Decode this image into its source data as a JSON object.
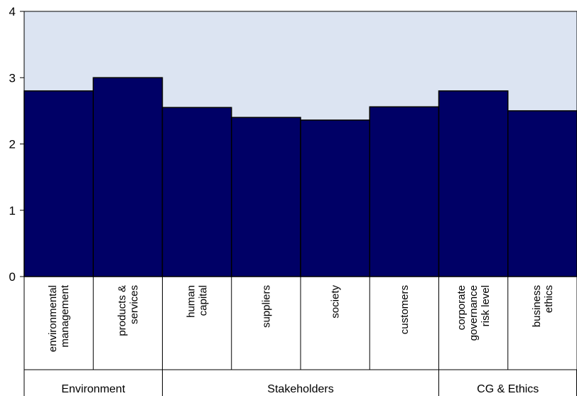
{
  "chart_data": {
    "type": "bar",
    "title": "",
    "xlabel": "",
    "ylabel": "",
    "ylim": [
      0,
      4
    ],
    "yticks": [
      0,
      1,
      2,
      3,
      4
    ],
    "grid": false,
    "categories": [
      {
        "label": [
          "environmental",
          "management"
        ],
        "value": 2.8
      },
      {
        "label": [
          "products &",
          "services"
        ],
        "value": 3.0
      },
      {
        "label": [
          "human",
          "capital"
        ],
        "value": 2.55
      },
      {
        "label": [
          "suppliers"
        ],
        "value": 2.4
      },
      {
        "label": [
          "society"
        ],
        "value": 2.36
      },
      {
        "label": [
          "customers"
        ],
        "value": 2.56
      },
      {
        "label": [
          "corporate",
          "governance",
          "risk level"
        ],
        "value": 2.8
      },
      {
        "label": [
          "business",
          "ethics"
        ],
        "value": 2.5
      }
    ],
    "groups": [
      {
        "label": "Environment",
        "span": 2
      },
      {
        "label": "Stakeholders",
        "span": 4
      },
      {
        "label": "CG & Ethics",
        "span": 2
      }
    ],
    "colors": {
      "bar": "#000066",
      "bar_stroke": "#000000",
      "plot_background": "#dce4f2",
      "axis": "#000000"
    }
  }
}
